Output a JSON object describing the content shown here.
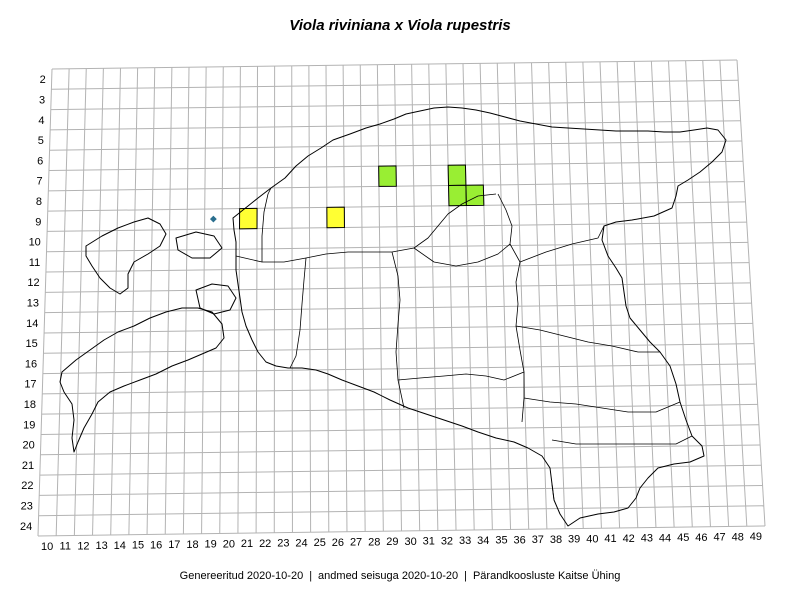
{
  "title": "Viola riviniana x Viola rupestris",
  "footer": {
    "generated": "Genereeritud 2020-10-20",
    "data_state": "andmed seisuga 2020-10-20",
    "organization": "Pärandkoosluste Kaitse Ühing",
    "separator": "|"
  },
  "grid": {
    "x_labels": [
      "10",
      "11",
      "12",
      "13",
      "14",
      "15",
      "16",
      "17",
      "18",
      "19",
      "20",
      "21",
      "22",
      "23",
      "24",
      "25",
      "26",
      "27",
      "28",
      "29",
      "30",
      "31",
      "32",
      "33",
      "34",
      "35",
      "36",
      "37",
      "38",
      "39",
      "40",
      "41",
      "42",
      "43",
      "44",
      "45",
      "46",
      "47",
      "48",
      "49"
    ],
    "y_labels": [
      "2",
      "3",
      "4",
      "5",
      "6",
      "7",
      "8",
      "9",
      "10",
      "11",
      "12",
      "13",
      "14",
      "15",
      "16",
      "17",
      "18",
      "19",
      "20",
      "21",
      "22",
      "23",
      "24"
    ],
    "line_color": "#b3b3b3"
  },
  "occurrence_cells": [
    {
      "x": 21,
      "y": 9,
      "category": "yellow"
    },
    {
      "x": 26,
      "y": 9,
      "category": "yellow"
    },
    {
      "x": 29,
      "y": 7,
      "category": "green"
    },
    {
      "x": 33,
      "y": 7,
      "category": "green"
    },
    {
      "x": 33,
      "y": 8,
      "category": "green"
    },
    {
      "x": 34,
      "y": 8,
      "category": "green"
    }
  ],
  "point_marker": {
    "x": 19,
    "y": 9,
    "color": "#2b6f8f"
  },
  "colors": {
    "yellow": "#ffff33",
    "green": "#99ee33",
    "border": "#000000"
  }
}
